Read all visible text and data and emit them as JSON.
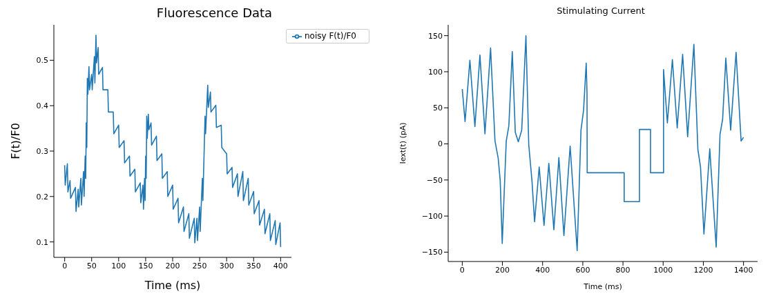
{
  "chart_data": [
    {
      "type": "line",
      "title": "Fluorescence Data",
      "xlabel": "Time (ms)",
      "ylabel": "F(t)/F0",
      "legend": "top right",
      "xlim": [
        -20,
        420
      ],
      "ylim": [
        0.066,
        0.578
      ],
      "xticks": [
        0,
        50,
        100,
        150,
        200,
        250,
        300,
        350,
        400
      ],
      "yticks": [
        0.1,
        0.2,
        0.3,
        0.4,
        0.5
      ],
      "grid": false,
      "series": [
        {
          "name": "noisy F(t)/F0",
          "color": "#1f77b4",
          "x": [
            0,
            1,
            5,
            6,
            10,
            11,
            20,
            21,
            25,
            26,
            30,
            31,
            35,
            36,
            38,
            39,
            40,
            41,
            42,
            43,
            45,
            46,
            50,
            51,
            55,
            56,
            58,
            59,
            62,
            63,
            70,
            71,
            80,
            81,
            90,
            91,
            100,
            101,
            110,
            111,
            120,
            121,
            130,
            131,
            140,
            141,
            145,
            146,
            148,
            149,
            150,
            151,
            152,
            153,
            155,
            156,
            160,
            161,
            170,
            171,
            180,
            181,
            190,
            191,
            200,
            201,
            210,
            211,
            220,
            221,
            230,
            231,
            240,
            241,
            245,
            246,
            250,
            251,
            255,
            256,
            260,
            261,
            265,
            266,
            270,
            271,
            280,
            281,
            290,
            291,
            300,
            301,
            310,
            311,
            320,
            321,
            330,
            331,
            340,
            341,
            350,
            351,
            360,
            361,
            370,
            371,
            380,
            381,
            390,
            391,
            399,
            400
          ],
          "values": [
            0.269,
            0.225,
            0.272,
            0.21,
            0.235,
            0.196,
            0.22,
            0.167,
            0.216,
            0.177,
            0.24,
            0.181,
            0.255,
            0.2,
            0.289,
            0.24,
            0.362,
            0.308,
            0.46,
            0.425,
            0.486,
            0.435,
            0.469,
            0.435,
            0.508,
            0.45,
            0.555,
            0.494,
            0.528,
            0.469,
            0.484,
            0.435,
            0.435,
            0.386,
            0.386,
            0.338,
            0.357,
            0.308,
            0.323,
            0.274,
            0.289,
            0.245,
            0.26,
            0.21,
            0.23,
            0.186,
            0.225,
            0.172,
            0.24,
            0.191,
            0.289,
            0.24,
            0.377,
            0.328,
            0.381,
            0.347,
            0.362,
            0.313,
            0.333,
            0.279,
            0.294,
            0.24,
            0.255,
            0.2,
            0.225,
            0.172,
            0.196,
            0.142,
            0.177,
            0.123,
            0.162,
            0.108,
            0.152,
            0.098,
            0.152,
            0.103,
            0.177,
            0.123,
            0.24,
            0.191,
            0.377,
            0.338,
            0.445,
            0.396,
            0.43,
            0.386,
            0.401,
            0.352,
            0.357,
            0.308,
            0.294,
            0.25,
            0.264,
            0.22,
            0.25,
            0.2,
            0.255,
            0.191,
            0.24,
            0.181,
            0.211,
            0.162,
            0.191,
            0.137,
            0.172,
            0.118,
            0.162,
            0.103,
            0.147,
            0.094,
            0.142,
            0.089
          ]
        }
      ]
    },
    {
      "type": "line",
      "title": "Stimulating Current",
      "xlabel": "Time (ms)",
      "ylabel": "Iext(t) (pA)",
      "xlim": [
        -70,
        1470
      ],
      "ylim": [
        -163,
        165
      ],
      "xticks": [
        0,
        200,
        400,
        600,
        800,
        1000,
        1200,
        1400
      ],
      "yticks": [
        -150,
        -100,
        -50,
        0,
        50,
        100,
        150
      ],
      "grid": false,
      "series": [
        {
          "color": "#1f77b4",
          "x": [
            0,
            14,
            38,
            63,
            88,
            113,
            141,
            163,
            179,
            189,
            199,
            209,
            219,
            232,
            249,
            264,
            279,
            296,
            317,
            331,
            347,
            360,
            383,
            407,
            431,
            456,
            481,
            506,
            537,
            572,
            591,
            604,
            617,
            621,
            622,
            806,
            806,
            882,
            882,
            937,
            937,
            1002,
            1002,
            1021,
            1046,
            1070,
            1097,
            1122,
            1153,
            1173,
            1186,
            1203,
            1232,
            1264,
            1283,
            1296,
            1312,
            1336,
            1363,
            1388,
            1400
          ],
          "values": [
            76,
            31,
            116,
            24,
            123,
            14,
            133,
            4,
            -20,
            -51,
            -138,
            -66,
            4,
            25,
            128,
            16,
            3,
            19,
            150,
            -1,
            -51,
            -108,
            -32,
            -113,
            -27,
            -119,
            -19,
            -127,
            -3,
            -148,
            19,
            47,
            112,
            71,
            -40,
            -40,
            -80,
            -80,
            20,
            20,
            -40,
            -40,
            103,
            29,
            117,
            22,
            124,
            10,
            138,
            -8,
            -32,
            -125,
            -7,
            -143,
            13,
            34,
            119,
            19,
            127,
            4,
            9
          ]
        }
      ]
    }
  ]
}
